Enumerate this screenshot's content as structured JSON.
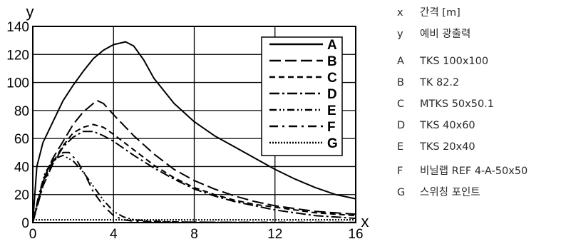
{
  "chart_data": {
    "type": "line",
    "xlabel": "x",
    "ylabel": "y",
    "xlim": [
      0,
      16
    ],
    "ylim": [
      0,
      140
    ],
    "xticks": [
      "0",
      "4",
      "8",
      "12",
      "16"
    ],
    "yticks": [
      "0",
      "20",
      "40",
      "60",
      "80",
      "100",
      "120",
      "140"
    ],
    "grid": true,
    "legend_position": "top-right",
    "series": [
      {
        "name": "A",
        "dash": "solid",
        "x": [
          0,
          0.2,
          0.5,
          1,
          1.5,
          2,
          2.5,
          3,
          3.5,
          4,
          4.3,
          4.6,
          5,
          5.5,
          6,
          7,
          8,
          9,
          10,
          11,
          12,
          13,
          14,
          15,
          16
        ],
        "y": [
          0,
          40,
          57,
          72,
          87,
          98,
          108,
          117,
          123,
          127,
          128,
          129,
          126,
          116,
          103,
          85,
          72,
          62,
          54,
          46,
          38,
          31,
          25,
          20,
          17
        ]
      },
      {
        "name": "B",
        "dash": "long-dash",
        "x": [
          0,
          0.5,
          1,
          1.5,
          2,
          2.5,
          3,
          3.2,
          3.5,
          4,
          5,
          6,
          7,
          8,
          9,
          10,
          11,
          12,
          13,
          14,
          15,
          16
        ],
        "y": [
          0,
          30,
          46,
          58,
          70,
          79,
          85,
          87,
          85,
          77,
          62,
          49,
          38,
          30,
          24,
          19,
          15,
          12,
          10,
          8,
          7,
          6
        ]
      },
      {
        "name": "C",
        "dash": "dash",
        "x": [
          0,
          0.5,
          1,
          1.5,
          2,
          2.5,
          3,
          3.5,
          4,
          5,
          6,
          7,
          8,
          9,
          10,
          11,
          12,
          13,
          14,
          15,
          16
        ],
        "y": [
          0,
          28,
          43,
          55,
          64,
          68,
          70,
          68,
          63,
          52,
          41,
          32,
          25,
          20,
          16,
          13,
          11,
          9,
          7,
          6,
          5
        ]
      },
      {
        "name": "D",
        "dash": "dash-dot",
        "x": [
          0,
          0.5,
          1,
          1.5,
          2,
          2.5,
          3,
          3.5,
          4,
          5,
          6,
          7,
          8,
          9,
          10,
          11,
          12,
          13,
          14,
          15,
          16
        ],
        "y": [
          0,
          26,
          42,
          54,
          61,
          65,
          65,
          62,
          58,
          48,
          39,
          31,
          24,
          19,
          15,
          12,
          9,
          7,
          5,
          4,
          3
        ]
      },
      {
        "name": "E",
        "dash": "dash-dot-dot",
        "x": [
          0,
          0.3,
          0.6,
          1,
          1.5,
          2,
          2.5,
          3,
          3.5,
          4,
          4.5,
          5,
          6,
          7,
          8,
          10,
          12,
          14,
          16
        ],
        "y": [
          0,
          20,
          35,
          45,
          48,
          44,
          36,
          26,
          16,
          8,
          4,
          2,
          1,
          0.5,
          0.3,
          0.2,
          0.2,
          0.1,
          0.1
        ]
      },
      {
        "name": "F",
        "dash": "dash-dot-sparse",
        "x": [
          0,
          0.3,
          0.6,
          1,
          1.5,
          1.8,
          2.2,
          2.6,
          3,
          3.5,
          4,
          4.5,
          5,
          6,
          8,
          10,
          12,
          14,
          16
        ],
        "y": [
          0,
          18,
          33,
          44,
          50,
          50,
          44,
          34,
          22,
          12,
          5,
          2,
          1,
          0.5,
          0.3,
          0.2,
          0.1,
          0.1,
          0.1
        ]
      },
      {
        "name": "G",
        "dash": "dotted",
        "x": [
          0,
          4,
          8,
          12,
          16
        ],
        "y": [
          2,
          2,
          2,
          2,
          2
        ]
      }
    ]
  },
  "side_legend": [
    {
      "key": "x",
      "label": "간격 [m]"
    },
    {
      "key": "y",
      "label": "예비 광출력"
    },
    {
      "key": "A",
      "label": "TKS 100x100"
    },
    {
      "key": "B",
      "label": "TK 82.2"
    },
    {
      "key": "C",
      "label": "MTKS 50x50.1"
    },
    {
      "key": "D",
      "label": "TKS 40x60"
    },
    {
      "key": "E",
      "label": "TKS 20x40"
    },
    {
      "key": "F",
      "label": "비닐랩 REF 4-A-50x50"
    },
    {
      "key": "G",
      "label": "스위칭 포인트"
    }
  ]
}
